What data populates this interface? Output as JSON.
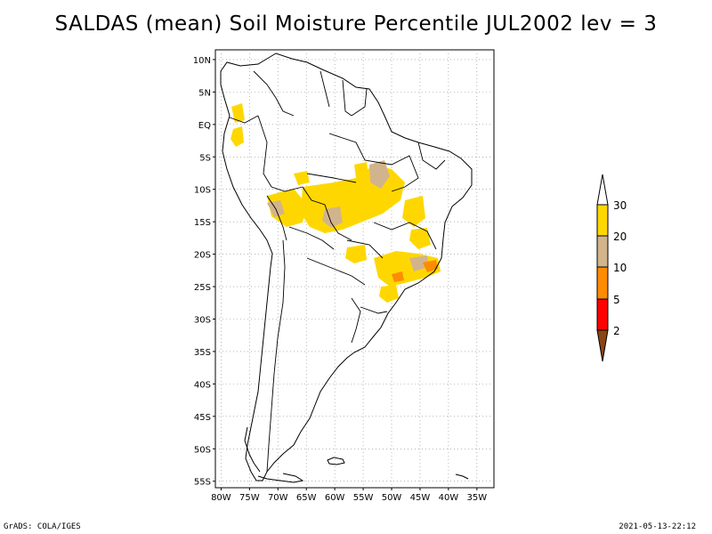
{
  "title": "SALDAS (mean) Soil Moisture Percentile JUL2002 lev = 3",
  "footer": {
    "left": "GrADS: COLA/IGES",
    "right": "2021-05-13-22:12"
  },
  "lat_ticks": [
    "10N",
    "5N",
    "EQ",
    "5S",
    "10S",
    "15S",
    "20S",
    "25S",
    "30S",
    "35S",
    "40S",
    "45S",
    "50S",
    "55S"
  ],
  "lon_ticks": [
    "80W",
    "75W",
    "70W",
    "65W",
    "60W",
    "55W",
    "50W",
    "45W",
    "40W",
    "35W"
  ],
  "map_extent": {
    "lon_min": -81,
    "lon_max": -32,
    "lat_min": -56,
    "lat_max": 11.5
  },
  "legend": {
    "labels": [
      "30",
      "20",
      "10",
      "5",
      "2"
    ],
    "colors": [
      "#ffffff",
      "#ffd700",
      "#d2b48c",
      "#ff8c00",
      "#ff0000",
      "#8b4513"
    ]
  },
  "colors": {
    "dry_20_30": "#ffd700",
    "dry_10_20": "#d2b48c",
    "dry_5_10": "#ff8c00",
    "coast": "#000000",
    "grid": "#888888"
  }
}
